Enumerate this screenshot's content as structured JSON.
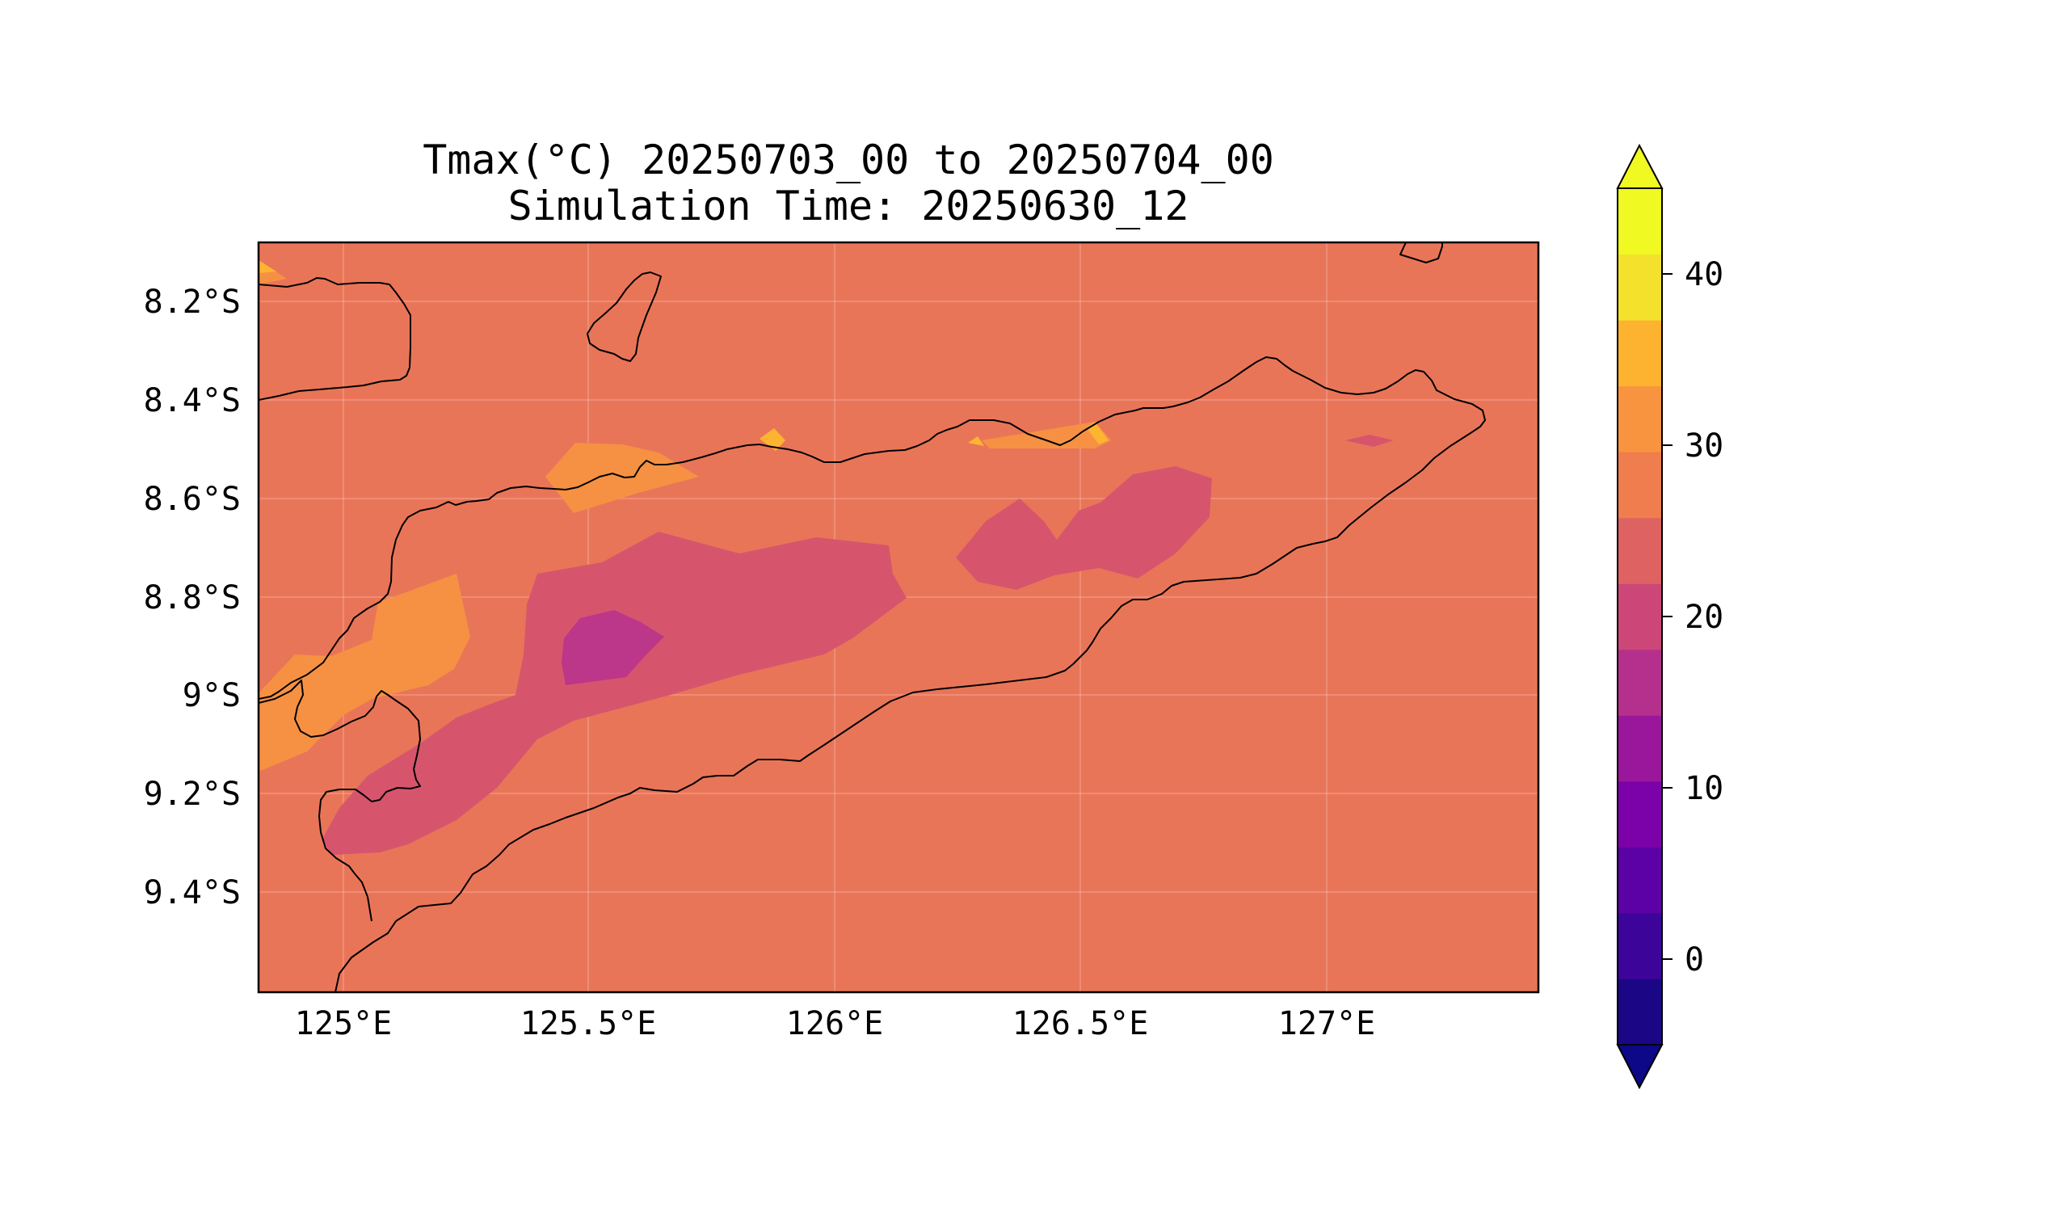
{
  "title": {
    "line1": "Tmax(°C) 20250703_00 to 20250704_00",
    "line2": "Simulation Time: 20250630_12"
  },
  "map": {
    "lon_ticks": [
      "125°E",
      "125.5°E",
      "126°E",
      "126.5°E",
      "127°E"
    ],
    "lat_ticks": [
      "8.2°S",
      "8.4°S",
      "8.6°S",
      "8.8°S",
      "9°S",
      "9.2°S",
      "9.4°S"
    ],
    "colors": {
      "background_level": "#e97558",
      "level_30_35": "#f69143",
      "level_35_40": "#fdb431",
      "level_20_25": "#d6556d",
      "level_15_20": "#bc3689",
      "coastline": "#000000"
    }
  },
  "colorbar": {
    "tick_labels": [
      "0",
      "10",
      "20",
      "30",
      "40"
    ],
    "colors": [
      "#1b0686",
      "#3d049a",
      "#5c01a6",
      "#7b02a8",
      "#9a179b",
      "#b52f8c",
      "#cc4778",
      "#df6263",
      "#ef7d4e",
      "#f89440",
      "#fdb32f",
      "#f3e12c",
      "#f0f921"
    ],
    "under_color": "#0d0887",
    "over_color": "#f0f921"
  }
}
